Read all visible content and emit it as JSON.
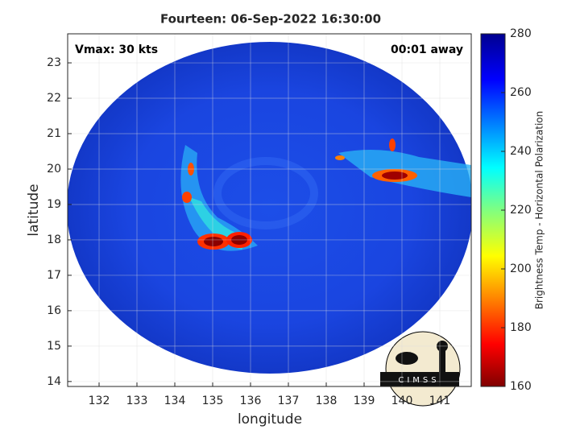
{
  "chart_data": {
    "type": "image-map",
    "title": "Fourteen: 06-Sep-2022 16:30:00",
    "xlabel": "longitude",
    "ylabel": "latitude",
    "xlim": [
      131.17,
      141.83
    ],
    "xticks": [
      132,
      133,
      134,
      135,
      136,
      137,
      138,
      139,
      140,
      141
    ],
    "ylim": [
      13.86,
      23.82
    ],
    "yticks": [
      14,
      15,
      16,
      17,
      18,
      19,
      20,
      21,
      22,
      23
    ],
    "grid": true,
    "annotations": [
      "Vmax: 30 kts",
      "00:01 away"
    ],
    "colorbar": {
      "label": "Brightness Temp - Horizontal Polarization",
      "lim": [
        160,
        280
      ],
      "ticks": [
        160,
        180,
        200,
        220,
        240,
        260,
        280
      ]
    },
    "watermark": "CIMSS"
  }
}
